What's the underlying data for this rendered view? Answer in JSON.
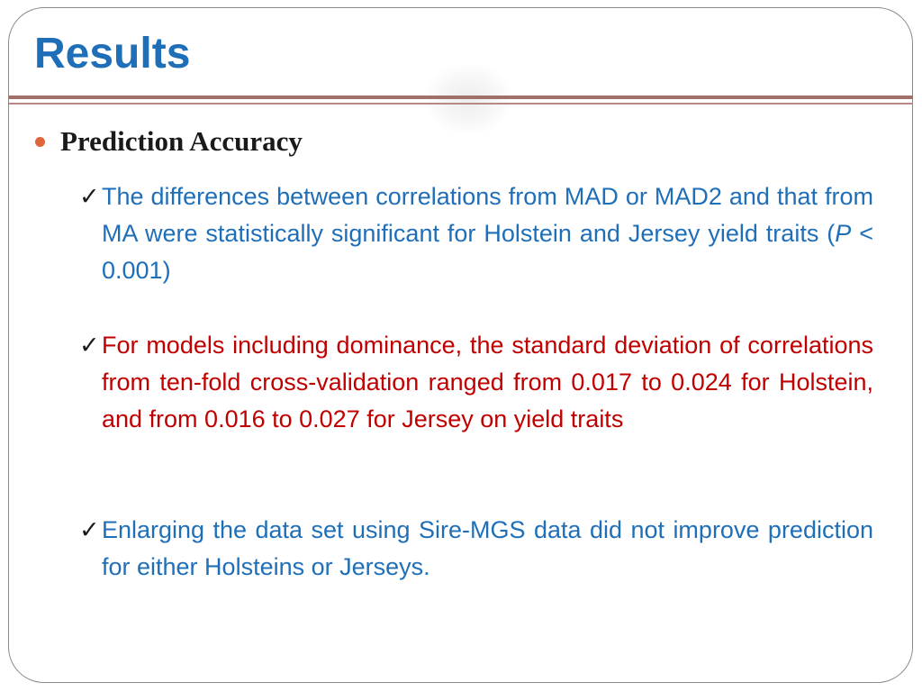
{
  "slide": {
    "title": "Results",
    "bullet": "Prediction Accuracy",
    "items": [
      {
        "check": "✓",
        "text_before": "The differences between correlations from MAD or MAD2 and that from MA were statistically significant for Holstein and Jersey yield traits (",
        "italic": "P",
        "text_after": " < 0.001)",
        "color": "#1f6fb8"
      },
      {
        "check": "✓",
        "text": "For models including dominance, the standard deviation of correlations from ten-fold cross-validation ranged from 0.017 to 0.024 for Holstein, and from 0.016 to 0.027 for Jersey on yield traits",
        "color": "#c00000"
      },
      {
        "check": "✓",
        "text": "Enlarging the data set using Sire-MGS data did not improve  prediction for either Holsteins or Jerseys.",
        "color": "#1f6fb8"
      }
    ],
    "colors": {
      "title": "#1f6fb8",
      "divider": "#a36f6a",
      "bullet": "#e0663a"
    }
  }
}
